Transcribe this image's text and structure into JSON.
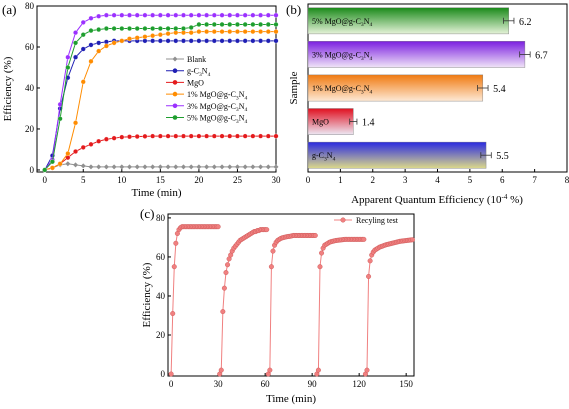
{
  "chart_data": [
    {
      "panel": "(a)",
      "type": "line",
      "xlabel": "Time (min)",
      "ylabel": "Efficiency (%)",
      "xlim": [
        -1,
        30
      ],
      "ylim": [
        -1,
        80
      ],
      "xticks": [
        0,
        5,
        10,
        15,
        20,
        25,
        30
      ],
      "yticks": [
        0,
        20,
        40,
        60,
        80
      ],
      "legend": "right",
      "x": [
        0,
        1,
        2,
        3,
        4,
        5,
        6,
        7,
        8,
        9,
        10,
        11,
        12,
        13,
        14,
        15,
        16,
        17,
        18,
        19,
        20,
        21,
        22,
        23,
        24,
        25,
        26,
        27,
        28,
        29,
        30
      ],
      "series": [
        {
          "name": "Blank",
          "label_parts": [
            "Blank"
          ],
          "color": "#909090",
          "marker": "diamond",
          "values": [
            0,
            1,
            2.5,
            3,
            2.5,
            2,
            1.5,
            1.5,
            1.5,
            1.5,
            1.5,
            1.5,
            1.5,
            1.5,
            1.5,
            1.5,
            1.5,
            1.5,
            1.5,
            1.5,
            1.5,
            1.5,
            1.5,
            1.5,
            1.5,
            1.5,
            1.5,
            1.5,
            1.5,
            1.5,
            1.5
          ]
        },
        {
          "name": "g-C3N4",
          "label_parts": [
            "g-C",
            "3",
            "N",
            "4"
          ],
          "color": "#1f1fb4",
          "marker": "circle",
          "values": [
            0,
            7,
            30,
            45,
            55,
            59,
            61,
            62,
            62.5,
            63,
            63,
            63,
            63,
            63,
            63,
            63,
            63,
            63,
            63,
            63,
            63,
            63,
            63,
            63,
            63,
            63,
            63,
            63,
            63,
            63,
            63
          ]
        },
        {
          "name": "MgO",
          "label_parts": [
            "MgO"
          ],
          "color": "#e41a1c",
          "marker": "circle",
          "values": [
            0,
            1,
            3,
            6,
            9,
            11,
            12.5,
            14,
            15,
            15.5,
            16,
            16.2,
            16.3,
            16.4,
            16.5,
            16.5,
            16.5,
            16.5,
            16.5,
            16.5,
            16.5,
            16.5,
            16.5,
            16.5,
            16.5,
            16.5,
            16.5,
            16.5,
            16.5,
            16.5,
            16.5
          ]
        },
        {
          "name": "1% MgO@g-C3N4",
          "label_parts": [
            "1% MgO@g-C",
            "3",
            "N",
            "4"
          ],
          "color": "#ff8c00",
          "marker": "circle",
          "values": [
            0,
            1,
            3,
            8,
            23,
            43,
            53,
            58,
            60.5,
            62,
            63,
            64,
            64.5,
            65,
            65.5,
            66,
            66.5,
            67,
            67,
            67,
            67.5,
            67.5,
            67.5,
            67.5,
            67.5,
            67.5,
            67.5,
            67.5,
            67.5,
            67.5,
            67.5
          ]
        },
        {
          "name": "3% MgO@g-C3N4",
          "label_parts": [
            "3% MgO@g-C",
            "3",
            "N",
            "4"
          ],
          "color": "#9b30ff",
          "marker": "circle",
          "values": [
            0,
            5,
            32,
            55,
            67,
            72,
            74,
            75,
            75.5,
            75.5,
            75.5,
            75.5,
            75.5,
            75.5,
            75.5,
            75.5,
            75.5,
            75.5,
            75.5,
            75.5,
            75.5,
            75.5,
            75.5,
            75.5,
            75.5,
            75.5,
            75.5,
            75.5,
            75.5,
            75.5,
            75.5
          ]
        },
        {
          "name": "5% MgO@g-C3N4",
          "label_parts": [
            "5% MgO@g-C",
            "3",
            "N",
            "4"
          ],
          "color": "#1e9e2e",
          "marker": "circle",
          "values": [
            0,
            4,
            25,
            50,
            62,
            66,
            68,
            68.5,
            69,
            69,
            69,
            69,
            69,
            69,
            69,
            69,
            69,
            69,
            69,
            69.5,
            71,
            71,
            71,
            71,
            71,
            71,
            71,
            71,
            71,
            71,
            71
          ]
        }
      ]
    },
    {
      "panel": "(b)",
      "type": "bar",
      "orientation": "horizontal",
      "xlabel": "Apparent Quantum Efficiency (10",
      "xlabel_sup": "-4",
      "xlabel_tail": " %)",
      "ylabel": "Sample",
      "xlim": [
        0,
        8
      ],
      "xticks": [
        0,
        1,
        2,
        3,
        4,
        5,
        6,
        7,
        8
      ],
      "categories": [
        "5% MgO@g-C3N4",
        "3% MgO@g-C3N4",
        "1% MgO@g-C3N4",
        "MgO",
        "g-C3N4"
      ],
      "category_parts": [
        [
          "5% MgO@g-C",
          "3",
          "N",
          "4"
        ],
        [
          "3% MgO@g-C",
          "3",
          "N",
          "4"
        ],
        [
          "1% MgO@g-C",
          "3",
          "N",
          "4"
        ],
        [
          "MgO"
        ],
        [
          "g-C",
          "3",
          "N",
          "4"
        ]
      ],
      "values": [
        6.2,
        6.7,
        5.4,
        1.4,
        5.5
      ],
      "value_labels": [
        "6.2",
        "6.7",
        "5.4",
        "1.4",
        "5.5"
      ],
      "errors": [
        0.1,
        0.1,
        0.1,
        0.05,
        0.1
      ],
      "colors": [
        [
          "#1a8a1a",
          "#e6f3d9"
        ],
        [
          "#7b1fe0",
          "#f0e4f7"
        ],
        [
          "#f07a10",
          "#fde9d6"
        ],
        [
          "#e01020",
          "#ece8f4"
        ],
        [
          "#2a2ae0",
          "#dcd98a"
        ]
      ]
    },
    {
      "panel": "(c)",
      "type": "line",
      "xlabel": "Time (min)",
      "ylabel": "Efficiency (%)",
      "xlim": [
        -2,
        155
      ],
      "ylim": [
        -1,
        82
      ],
      "xticks": [
        0,
        30,
        60,
        90,
        120,
        150
      ],
      "yticks": [
        0,
        20,
        40,
        60,
        80
      ],
      "legend": "top-right",
      "series": [
        {
          "name": "Recyling test",
          "color": "#f08080",
          "marker": "circle",
          "cycles": [
            {
              "x": [
                0,
                1,
                2,
                3,
                4,
                5,
                6,
                7,
                8,
                9,
                10,
                11,
                12,
                13,
                14,
                15,
                16,
                17,
                18,
                19,
                20,
                21,
                22,
                23,
                24,
                25,
                26,
                27,
                28,
                29,
                30
              ],
              "values": [
                0,
                31,
                55,
                67,
                72,
                74,
                75,
                75.5,
                75.5,
                75.5,
                75.5,
                75.5,
                75.5,
                75.5,
                75.5,
                75.5,
                75.5,
                75.5,
                75.5,
                75.5,
                75.5,
                75.5,
                75.5,
                75.5,
                75.5,
                75.5,
                75.5,
                75.5,
                75.5,
                75.5,
                75.5
              ]
            },
            {
              "x": [
                31,
                32,
                33,
                34,
                35,
                36,
                37,
                38,
                39,
                40,
                41,
                42,
                43,
                44,
                45,
                46,
                47,
                48,
                49,
                50,
                51,
                52,
                53,
                54,
                55,
                56,
                57,
                58,
                59,
                60,
                61
              ],
              "values": [
                0,
                2,
                32,
                44,
                52,
                56,
                59,
                61,
                63,
                64.5,
                65.5,
                66.5,
                67.5,
                68.5,
                69,
                69.5,
                70,
                70.5,
                71,
                71.5,
                72,
                72.5,
                73,
                73,
                73.5,
                73.5,
                74,
                74,
                74,
                74,
                74
              ]
            },
            {
              "x": [
                62,
                63,
                64,
                65,
                66,
                67,
                68,
                69,
                70,
                71,
                72,
                73,
                74,
                75,
                76,
                77,
                78,
                79,
                80,
                81,
                82,
                83,
                84,
                85,
                86,
                87,
                88,
                89,
                90,
                91,
                92
              ],
              "values": [
                0,
                2,
                55,
                63,
                66,
                67.5,
                68.5,
                69,
                69.5,
                69.8,
                70,
                70.2,
                70.4,
                70.5,
                70.6,
                70.8,
                71,
                71,
                71,
                71,
                71,
                71,
                71,
                71,
                71,
                71,
                71,
                71,
                71,
                71,
                71
              ]
            },
            {
              "x": [
                93,
                94,
                95,
                96,
                97,
                98,
                99,
                100,
                101,
                102,
                103,
                104,
                105,
                106,
                107,
                108,
                109,
                110,
                111,
                112,
                113,
                114,
                115,
                116,
                117,
                118,
                119,
                120,
                121,
                122,
                123
              ],
              "values": [
                0,
                2,
                55,
                62,
                64.5,
                66,
                66.5,
                67,
                67.5,
                67.8,
                68,
                68.2,
                68.4,
                68.5,
                68.6,
                68.7,
                68.8,
                68.9,
                69,
                69,
                69,
                69,
                69,
                69,
                69,
                69,
                69,
                69,
                69,
                69,
                69
              ]
            },
            {
              "x": [
                124,
                125,
                126,
                127,
                128,
                129,
                130,
                131,
                132,
                133,
                134,
                135,
                136,
                137,
                138,
                139,
                140,
                141,
                142,
                143,
                144,
                145,
                146,
                147,
                148,
                149,
                150,
                151,
                152,
                153,
                154
              ],
              "values": [
                0,
                2,
                50,
                58,
                61,
                62.5,
                63.5,
                64,
                64.5,
                65,
                65.3,
                65.6,
                65.9,
                66.2,
                66.4,
                66.6,
                66.8,
                67,
                67.2,
                67.4,
                67.6,
                67.8,
                68,
                68.1,
                68.2,
                68.3,
                68.4,
                68.5,
                68.6,
                68.7,
                68.8
              ]
            }
          ]
        }
      ]
    }
  ]
}
